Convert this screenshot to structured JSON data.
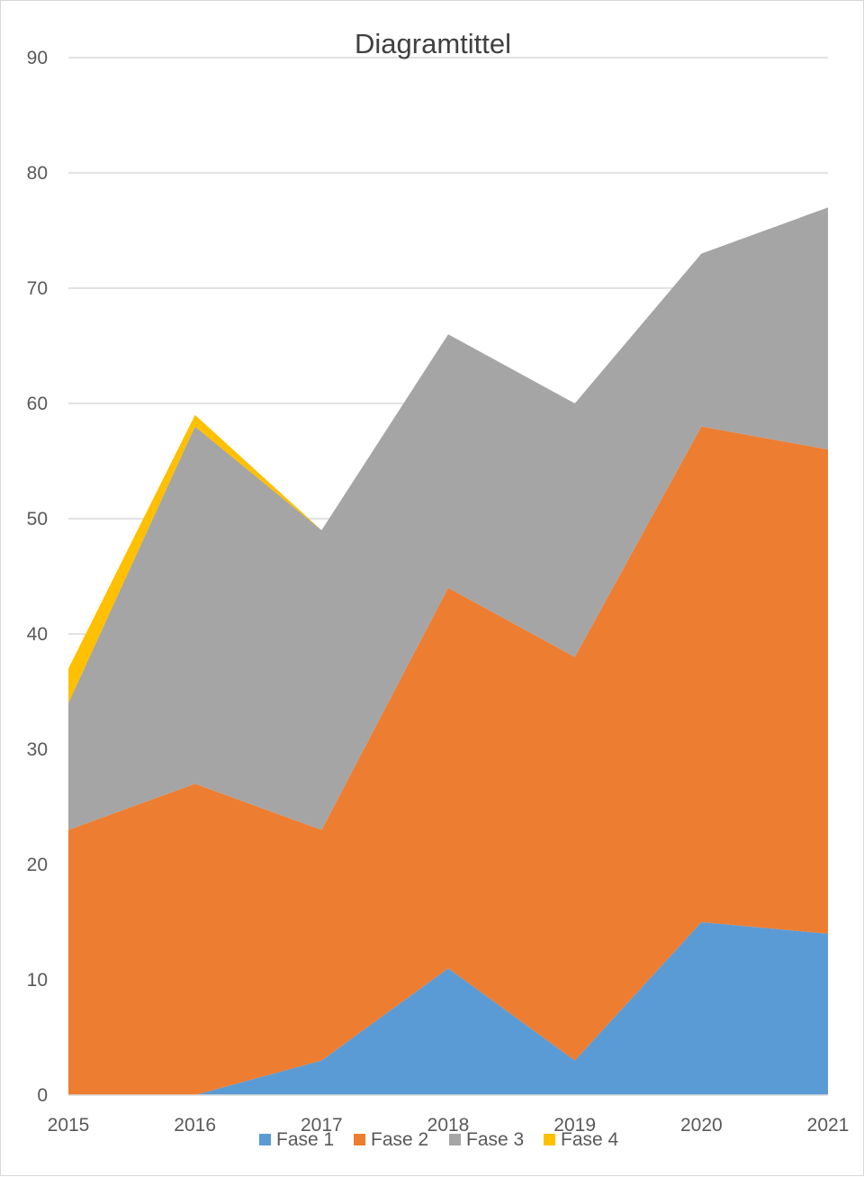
{
  "chart_data": {
    "type": "area",
    "stacked": true,
    "title": "Diagramtittel",
    "categories": [
      "2015",
      "2016",
      "2017",
      "2018",
      "2019",
      "2020",
      "2021"
    ],
    "series": [
      {
        "name": "Fase 1",
        "color": "#5b9bd5",
        "values": [
          0,
          0,
          3,
          11,
          3,
          15,
          14
        ]
      },
      {
        "name": "Fase 2",
        "color": "#ed7d31",
        "values": [
          23,
          27,
          20,
          33,
          35,
          43,
          42
        ]
      },
      {
        "name": "Fase 3",
        "color": "#a5a5a5",
        "values": [
          11,
          31,
          26,
          22,
          22,
          15,
          21
        ]
      },
      {
        "name": "Fase 4",
        "color": "#ffc000",
        "values": [
          3,
          1,
          0,
          0,
          0,
          0,
          0
        ]
      }
    ],
    "ylim": [
      0,
      90
    ],
    "yticks": [
      0,
      10,
      20,
      30,
      40,
      50,
      60,
      70,
      80,
      90
    ],
    "grid": true,
    "legend_position": "bottom"
  }
}
